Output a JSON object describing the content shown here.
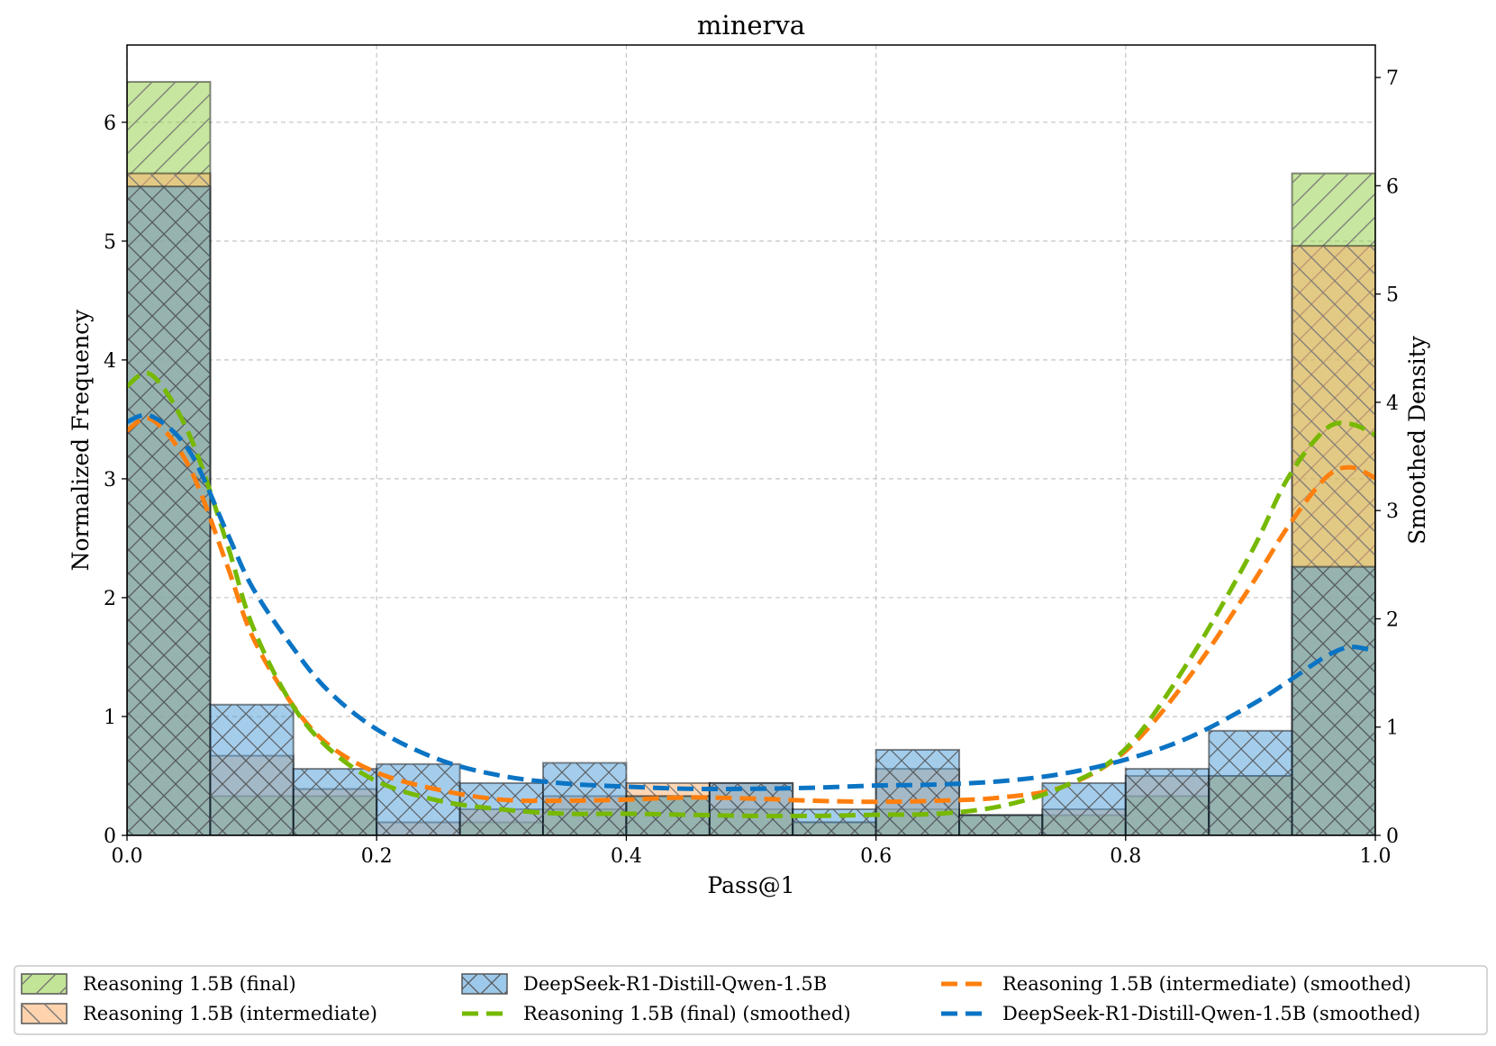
{
  "chart_data": {
    "type": "bar",
    "title": "minerva",
    "xlabel": "Pass@1",
    "ylabel": "Normalized Frequency",
    "y2label": "Smoothed Density",
    "xlim": [
      0.0,
      1.0
    ],
    "ylim": [
      0,
      6.65
    ],
    "y2lim": [
      0,
      7.3
    ],
    "grid": true,
    "legend_position": "bottom",
    "x_ticks": [
      "0.0",
      "0.2",
      "0.4",
      "0.6",
      "0.8",
      "1.0"
    ],
    "y_ticks": [
      "0",
      "1",
      "2",
      "3",
      "4",
      "5",
      "6"
    ],
    "y2_ticks": [
      "0",
      "1",
      "2",
      "3",
      "4",
      "5",
      "6",
      "7"
    ],
    "bin_edges": [
      0.0,
      0.0667,
      0.1333,
      0.2,
      0.2667,
      0.3333,
      0.4,
      0.4667,
      0.5333,
      0.6,
      0.6667,
      0.7333,
      0.8,
      0.8667,
      0.9333,
      1.0
    ],
    "series": [
      {
        "name": "Reasoning 1.5B (final)",
        "kind": "hist",
        "color": "#8fce3f",
        "hatch": "/",
        "values": [
          6.34,
          0.33,
          0.33,
          0.0,
          0.11,
          0.22,
          0.33,
          0.22,
          0.11,
          0.22,
          0.17,
          0.17,
          0.33,
          0.5,
          5.57
        ]
      },
      {
        "name": "Reasoning 1.5B (intermediate)",
        "kind": "hist",
        "color": "#fdae6b",
        "hatch": "\\",
        "values": [
          5.57,
          0.67,
          0.39,
          0.11,
          0.22,
          0.33,
          0.44,
          0.44,
          0.11,
          0.56,
          0.17,
          0.22,
          0.5,
          0.5,
          4.96
        ]
      },
      {
        "name": "DeepSeek-R1-Distill-Qwen-1.5B",
        "kind": "hist",
        "color": "#4a9bd9",
        "hatch": "x",
        "values": [
          5.46,
          1.1,
          0.56,
          0.6,
          0.44,
          0.61,
          0.33,
          0.44,
          0.22,
          0.72,
          0.17,
          0.44,
          0.56,
          0.88,
          2.26
        ]
      },
      {
        "name": "Reasoning 1.5B (intermediate) (smoothed)",
        "kind": "kde",
        "color": "#ff7f0e",
        "x": [
          0.0,
          0.02,
          0.05,
          0.08,
          0.1,
          0.13,
          0.16,
          0.2,
          0.25,
          0.3,
          0.35,
          0.4,
          0.45,
          0.5,
          0.55,
          0.6,
          0.65,
          0.7,
          0.75,
          0.8,
          0.85,
          0.9,
          0.93,
          0.96,
          0.98,
          1.0
        ],
        "y": [
          3.74,
          3.84,
          3.4,
          2.5,
          1.85,
          1.25,
          0.85,
          0.58,
          0.42,
          0.33,
          0.32,
          0.33,
          0.35,
          0.34,
          0.32,
          0.31,
          0.32,
          0.35,
          0.45,
          0.78,
          1.45,
          2.3,
          2.85,
          3.3,
          3.4,
          3.3
        ]
      },
      {
        "name": "Reasoning 1.5B (final) (smoothed)",
        "kind": "kde",
        "color": "#76b900",
        "x": [
          0.0,
          0.02,
          0.05,
          0.08,
          0.1,
          0.13,
          0.16,
          0.2,
          0.25,
          0.3,
          0.35,
          0.4,
          0.45,
          0.5,
          0.55,
          0.6,
          0.65,
          0.7,
          0.75,
          0.8,
          0.85,
          0.9,
          0.93,
          0.96,
          0.98,
          1.0
        ],
        "y": [
          4.15,
          4.25,
          3.7,
          2.7,
          1.95,
          1.25,
          0.82,
          0.5,
          0.32,
          0.24,
          0.2,
          0.2,
          0.19,
          0.18,
          0.18,
          0.19,
          0.2,
          0.27,
          0.45,
          0.8,
          1.6,
          2.6,
          3.3,
          3.75,
          3.8,
          3.7
        ]
      },
      {
        "name": "DeepSeek-R1-Distill-Qwen-1.5B (smoothed)",
        "kind": "kde",
        "color": "#0b74c4",
        "x": [
          0.0,
          0.02,
          0.05,
          0.08,
          0.1,
          0.13,
          0.16,
          0.2,
          0.25,
          0.3,
          0.35,
          0.4,
          0.45,
          0.5,
          0.55,
          0.6,
          0.65,
          0.7,
          0.75,
          0.8,
          0.85,
          0.9,
          0.93,
          0.96,
          0.98,
          1.0
        ],
        "y": [
          3.82,
          3.87,
          3.55,
          2.8,
          2.3,
          1.78,
          1.35,
          0.98,
          0.7,
          0.55,
          0.48,
          0.45,
          0.43,
          0.43,
          0.44,
          0.46,
          0.47,
          0.5,
          0.57,
          0.7,
          0.9,
          1.2,
          1.42,
          1.65,
          1.74,
          1.7
        ]
      }
    ]
  }
}
